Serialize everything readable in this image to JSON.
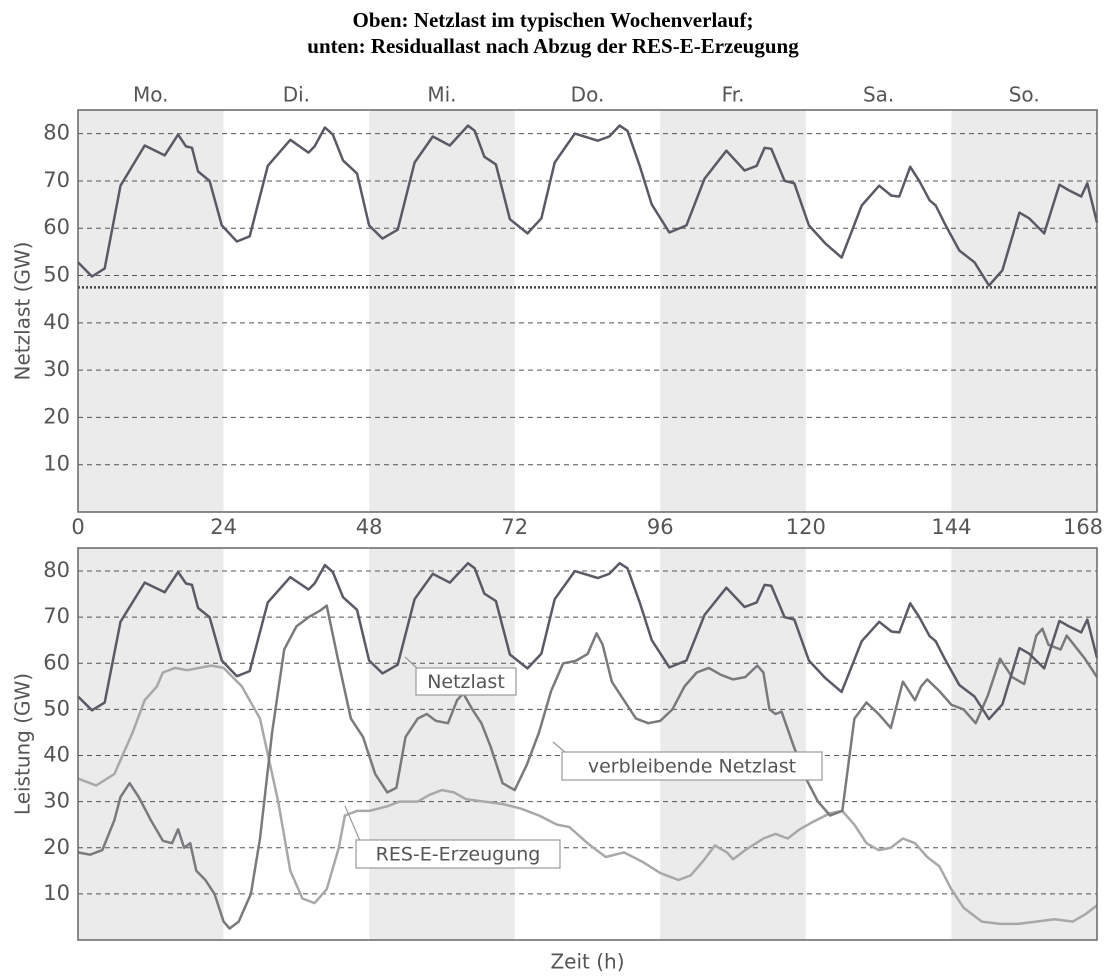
{
  "chart_data": [
    {
      "type": "line",
      "title": [
        "Oben: Netzlast im typischen Wochenverlauf;",
        "unten: Residuallast nach Abzug der RES-E-Erzeugung"
      ],
      "ylabel": "Netzlast (GW)",
      "categories": [
        "Mo.",
        "Di.",
        "Mi.",
        "Do.",
        "Fr.",
        "Sa.",
        "So."
      ],
      "xlim": [
        0,
        168
      ],
      "xticks": [
        0,
        24,
        48,
        72,
        96,
        120,
        144,
        168
      ],
      "ylim": [
        0,
        85
      ],
      "yticks": [
        10,
        20,
        30,
        40,
        50,
        60,
        70,
        80
      ],
      "grid": true,
      "band_color": "#ebebeb",
      "reference_line": 47.5,
      "series": [
        {
          "name": "Netzlast",
          "color": "#5a5a66",
          "x": [
            0,
            2.3,
            4.4,
            7,
            11,
            14.3,
            16.5,
            17.8,
            18.8,
            19.8,
            21.7,
            23.7,
            26.2,
            28.3,
            31.3,
            35,
            38,
            39,
            40.7,
            42,
            43.7,
            46,
            48,
            50.2,
            52.7,
            55.5,
            58.5,
            61.3,
            64.3,
            65.4,
            67,
            68.9,
            71.2,
            74.1,
            76.4,
            78.6,
            81.9,
            85.7,
            87.6,
            89.3,
            90.6,
            92.6,
            94.6,
            97.5,
            100.3,
            103.3,
            106.9,
            109.9,
            111.9,
            113.2,
            114.3,
            116.5,
            118.1,
            120.5,
            123.2,
            125.9,
            129.2,
            132.1,
            134.1,
            135.4,
            137.2,
            138.7,
            140.4,
            141.4,
            142.8,
            145.3,
            147.8,
            150.2,
            152.4,
            155.2,
            156.8,
            159.3,
            161.8,
            163.4,
            165.4,
            166.4,
            168
          ],
          "values": [
            52.8,
            49.8,
            51.5,
            69,
            77.5,
            75.4,
            79.8,
            77.3,
            77,
            72,
            70,
            60.6,
            57.2,
            58.3,
            73.2,
            78.7,
            76,
            77.3,
            81.3,
            79.8,
            74.3,
            71.6,
            60.6,
            57.8,
            59.7,
            73.9,
            79.4,
            77.5,
            81.7,
            80.6,
            75.1,
            73.5,
            61.9,
            58.9,
            62.1,
            73.9,
            80,
            78.5,
            79.4,
            81.7,
            80.6,
            73.2,
            65,
            59.1,
            60.6,
            70.5,
            76.4,
            72.2,
            73.2,
            77,
            76.8,
            70,
            69.5,
            60.6,
            56.8,
            53.8,
            64.8,
            69,
            66.9,
            66.7,
            73,
            70,
            65.9,
            64.8,
            61.2,
            55.3,
            52.8,
            47.9,
            51.1,
            63.3,
            62.1,
            58.9,
            69.2,
            68,
            66.7,
            69.5,
            61.2
          ]
        }
      ]
    },
    {
      "type": "line",
      "ylabel": "Leistung (GW)",
      "xlabel": "Zeit (h)",
      "xlim": [
        0,
        168
      ],
      "xticks": [
        0,
        24,
        48,
        72,
        96,
        120,
        144,
        168
      ],
      "ylim": [
        0,
        85
      ],
      "yticks": [
        10,
        20,
        30,
        40,
        50,
        60,
        70,
        80
      ],
      "grid": true,
      "band_color": "#ebebeb",
      "annotations": [
        "Netzlast",
        "verbleibende Netzlast",
        "RES-E-Erzeugung"
      ],
      "series": [
        {
          "name": "Netzlast",
          "color": "#5a5a66",
          "x": [
            0,
            2.3,
            4.4,
            7,
            11,
            14.3,
            16.5,
            17.8,
            18.8,
            19.8,
            21.7,
            23.7,
            26.2,
            28.3,
            31.3,
            35,
            38,
            39,
            40.7,
            42,
            43.7,
            46,
            48,
            50.2,
            52.7,
            55.5,
            58.5,
            61.3,
            64.3,
            65.4,
            67,
            68.9,
            71.2,
            74.1,
            76.4,
            78.6,
            81.9,
            85.7,
            87.6,
            89.3,
            90.6,
            92.6,
            94.6,
            97.5,
            100.3,
            103.3,
            106.9,
            109.9,
            111.9,
            113.2,
            114.3,
            116.5,
            118.1,
            120.5,
            123.2,
            125.9,
            129.2,
            132.1,
            134.1,
            135.4,
            137.2,
            138.7,
            140.4,
            141.4,
            142.8,
            145.3,
            147.8,
            150.2,
            152.4,
            155.2,
            156.8,
            159.3,
            161.8,
            163.4,
            165.4,
            166.4,
            168
          ],
          "values": [
            52.8,
            49.8,
            51.5,
            69,
            77.5,
            75.4,
            79.8,
            77.3,
            77,
            72,
            70,
            60.6,
            57.2,
            58.3,
            73.2,
            78.7,
            76,
            77.3,
            81.3,
            79.8,
            74.3,
            71.6,
            60.6,
            57.8,
            59.7,
            73.9,
            79.4,
            77.5,
            81.7,
            80.6,
            75.1,
            73.5,
            61.9,
            58.9,
            62.1,
            73.9,
            80,
            78.5,
            79.4,
            81.7,
            80.6,
            73.2,
            65,
            59.1,
            60.6,
            70.5,
            76.4,
            72.2,
            73.2,
            77,
            76.8,
            70,
            69.5,
            60.6,
            56.8,
            53.8,
            64.8,
            69,
            66.9,
            66.7,
            73,
            70,
            65.9,
            64.8,
            61.2,
            55.3,
            52.8,
            47.9,
            51.1,
            63.3,
            62.1,
            58.9,
            69.2,
            68,
            66.7,
            69.5,
            61.2
          ]
        },
        {
          "name": "verbleibende Netzlast",
          "color": "#7a7a7e",
          "x": [
            0,
            2,
            4,
            6,
            7,
            8.5,
            10,
            12,
            14,
            15.5,
            16.5,
            17.5,
            18.5,
            19.5,
            21,
            22.5,
            24,
            25,
            26.5,
            28.5,
            30,
            32,
            34,
            36,
            38,
            40,
            41,
            43,
            45,
            47,
            49,
            51,
            52.5,
            54,
            56,
            57.5,
            59,
            61,
            62.5,
            63.5,
            65,
            66.5,
            68,
            70,
            72,
            74,
            76,
            78,
            80,
            82,
            84,
            85.5,
            86.5,
            88,
            90,
            92,
            94,
            96,
            98,
            100,
            102,
            104,
            106,
            108,
            110,
            112,
            113,
            114,
            115,
            116,
            118,
            120,
            122,
            124,
            126,
            128,
            130,
            132,
            134,
            136,
            137,
            138,
            139,
            140,
            142,
            144,
            146,
            148,
            150,
            152,
            154,
            156,
            158,
            159,
            160,
            162,
            163,
            166,
            168
          ],
          "values": [
            19,
            18.5,
            19.5,
            26,
            31,
            34,
            31,
            26,
            21.5,
            21,
            24,
            20,
            21,
            15,
            13,
            10,
            4,
            2.5,
            4,
            10,
            22,
            45,
            63,
            68,
            70,
            71.5,
            72.5,
            60,
            48,
            44,
            36,
            32,
            33,
            44,
            48,
            49,
            47.5,
            47,
            52,
            53.5,
            50,
            47,
            42,
            34,
            32.5,
            38,
            45,
            54,
            60,
            60.5,
            62,
            66.5,
            64,
            56,
            52,
            48,
            47,
            47.5,
            50,
            55,
            58,
            59,
            57.5,
            56.5,
            57,
            59.5,
            58,
            50,
            49,
            49.5,
            42,
            35,
            30,
            27,
            28,
            48,
            51.5,
            49,
            46,
            56,
            54,
            52,
            55,
            56.5,
            54,
            51,
            50,
            47,
            53,
            61,
            57,
            55.5,
            66,
            67.5,
            64,
            63,
            66,
            61,
            57
          ]
        },
        {
          "name": "RES-E-Erzeugung",
          "color": "#a8a8a8",
          "x": [
            0,
            3,
            6,
            9,
            11,
            13,
            14,
            16,
            18,
            20,
            22,
            24,
            27,
            30,
            33,
            35,
            37,
            39,
            41,
            43,
            44,
            46,
            48,
            51,
            53,
            56,
            58,
            60,
            62,
            64,
            67,
            70,
            73,
            76,
            79,
            81,
            84,
            87,
            90,
            93,
            96,
            99,
            101,
            103,
            105,
            107,
            108,
            110,
            113,
            115,
            117,
            119,
            121,
            124,
            126,
            128,
            130,
            132,
            134,
            136,
            138,
            140,
            142,
            144,
            146,
            149,
            152,
            155,
            158,
            161,
            164,
            166,
            168
          ],
          "values": [
            35,
            33.5,
            36,
            45,
            52,
            55,
            58,
            59,
            58.5,
            59,
            59.5,
            59,
            55,
            48,
            30,
            15,
            9,
            8,
            11,
            20,
            27,
            28,
            28,
            29,
            30,
            30,
            31.5,
            32.5,
            32,
            30.5,
            30,
            29.5,
            28.5,
            27,
            25,
            24.5,
            21,
            18,
            19,
            17,
            14.5,
            13,
            14,
            17,
            20.5,
            19,
            17.5,
            19.5,
            22,
            23,
            22,
            24,
            25.5,
            27.5,
            28,
            25,
            21,
            19.5,
            20,
            22,
            21,
            18,
            16,
            11,
            7,
            4,
            3.5,
            3.5,
            4,
            4.5,
            4,
            5.5,
            7.5
          ]
        }
      ]
    }
  ]
}
